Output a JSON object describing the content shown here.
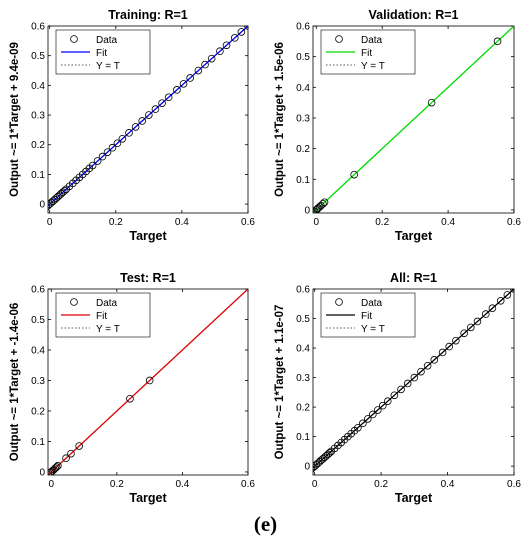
{
  "figure": {
    "caption": "(e)"
  },
  "chart_data": [
    {
      "type": "scatter",
      "title": "Training: R=1",
      "xlabel": "Target",
      "ylabel": "Output ~= 1*Target + 9.4e-09",
      "xlim": [
        -0.005,
        0.6
      ],
      "ylim": [
        -0.03,
        0.6
      ],
      "xticks": [
        "0",
        "0.2",
        "0.4",
        "0.6"
      ],
      "yticks": [
        "0",
        "0.1",
        "0.2",
        "0.3",
        "0.4",
        "0.5",
        "0.6"
      ],
      "legend": [
        "Data",
        "Fit",
        "Y = T"
      ],
      "fit_color": "#0000ff",
      "x": [
        -0.02,
        -0.015,
        -0.01,
        -0.005,
        0.0,
        0.005,
        0.01,
        0.015,
        0.02,
        0.025,
        0.03,
        0.035,
        0.04,
        0.045,
        0.05,
        0.06,
        0.07,
        0.08,
        0.09,
        0.1,
        0.11,
        0.12,
        0.13,
        0.145,
        0.16,
        0.175,
        0.19,
        0.205,
        0.22,
        0.24,
        0.26,
        0.28,
        0.3,
        0.32,
        0.34,
        0.36,
        0.385,
        0.405,
        0.425,
        0.45,
        0.47,
        0.49,
        0.515,
        0.535,
        0.56,
        0.58,
        0.6
      ],
      "fit": [
        [
          -0.025,
          -0.025
        ],
        [
          0.6,
          0.6
        ]
      ]
    },
    {
      "type": "scatter",
      "title": "Validation: R=1",
      "xlabel": "Target",
      "ylabel": "Output ~= 1*Target + 1.5e-06",
      "xlim": [
        -0.01,
        0.6
      ],
      "ylim": [
        -0.01,
        0.6
      ],
      "xticks": [
        "0",
        "0.2",
        "0.4",
        "0.6"
      ],
      "yticks": [
        "0",
        "0.1",
        "0.2",
        "0.3",
        "0.4",
        "0.5",
        "0.6"
      ],
      "legend": [
        "Data",
        "Fit",
        "Y = T"
      ],
      "fit_color": "#00dd00",
      "x": [
        -0.005,
        0.0,
        0.003,
        0.006,
        0.01,
        0.014,
        0.02,
        0.025,
        0.115,
        0.35,
        0.55
      ],
      "fit": [
        [
          -0.01,
          -0.01
        ],
        [
          0.6,
          0.6
        ]
      ]
    },
    {
      "type": "scatter",
      "title": "Test: R=1",
      "xlabel": "Target",
      "ylabel": "Output ~= 1*Target + -1.4e-06",
      "xlim": [
        -0.01,
        0.6
      ],
      "ylim": [
        -0.01,
        0.6
      ],
      "xticks": [
        "0",
        "0.2",
        "0.4",
        "0.6"
      ],
      "yticks": [
        "0",
        "0.1",
        "0.2",
        "0.3",
        "0.4",
        "0.5",
        "0.6"
      ],
      "legend": [
        "Data",
        "Fit",
        "Y = T"
      ],
      "fit_color": "#e00000",
      "x": [
        -0.003,
        0.0,
        0.004,
        0.008,
        0.012,
        0.016,
        0.02,
        0.045,
        0.06,
        0.085,
        0.24,
        0.3
      ],
      "fit": [
        [
          -0.01,
          -0.01
        ],
        [
          0.6,
          0.6
        ]
      ]
    },
    {
      "type": "scatter",
      "title": "All: R=1",
      "xlabel": "Target",
      "ylabel": "Output ~= 1*Target + 1.1e-07",
      "xlim": [
        -0.005,
        0.6
      ],
      "ylim": [
        -0.03,
        0.6
      ],
      "xticks": [
        "0",
        "0.2",
        "0.4",
        "0.6"
      ],
      "yticks": [
        "0",
        "0.1",
        "0.2",
        "0.3",
        "0.4",
        "0.5",
        "0.6"
      ],
      "legend": [
        "Data",
        "Fit",
        "Y = T"
      ],
      "fit_color": "#000000",
      "x": [
        -0.02,
        -0.015,
        -0.01,
        -0.005,
        0.0,
        0.005,
        0.01,
        0.015,
        0.02,
        0.025,
        0.03,
        0.035,
        0.04,
        0.045,
        0.05,
        0.06,
        0.07,
        0.08,
        0.09,
        0.1,
        0.11,
        0.12,
        0.13,
        0.145,
        0.16,
        0.175,
        0.19,
        0.205,
        0.22,
        0.24,
        0.26,
        0.28,
        0.3,
        0.32,
        0.34,
        0.36,
        0.385,
        0.405,
        0.425,
        0.45,
        0.47,
        0.49,
        0.515,
        0.535,
        0.56,
        0.58,
        0.6
      ],
      "fit": [
        [
          -0.025,
          -0.025
        ],
        [
          0.6,
          0.6
        ]
      ]
    }
  ]
}
